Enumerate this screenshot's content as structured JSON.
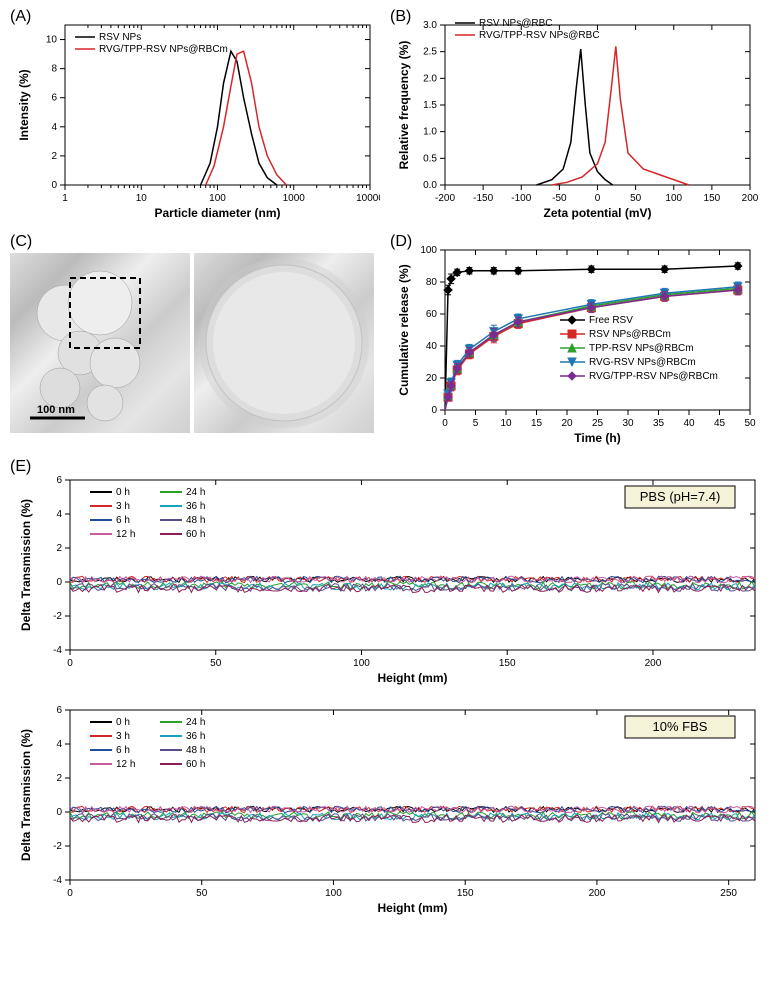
{
  "panelA": {
    "label": "(A)",
    "type": "line",
    "xlabel": "Particle diameter (nm)",
    "ylabel": "Intensity (%)",
    "xscale": "log",
    "xlim": [
      1,
      10000
    ],
    "xticks": [
      1,
      10,
      100,
      1000,
      10000
    ],
    "ylim": [
      0,
      11
    ],
    "yticks": [
      0,
      2,
      4,
      6,
      8,
      10
    ],
    "series": [
      {
        "name": "RSV NPs",
        "color": "#000000",
        "x": [
          60,
          80,
          100,
          120,
          150,
          180,
          220,
          280,
          350,
          450,
          600
        ],
        "y": [
          0,
          1.5,
          4,
          7,
          9.2,
          8.5,
          6,
          3.5,
          1.5,
          0.5,
          0
        ]
      },
      {
        "name": "RVG/TPP-RSV NPs@RBCm",
        "color": "#d62728",
        "x": [
          70,
          90,
          120,
          150,
          180,
          220,
          280,
          350,
          450,
          600,
          800
        ],
        "y": [
          0,
          1.3,
          4,
          6.8,
          9.0,
          9.2,
          7,
          4,
          2,
          0.7,
          0
        ]
      }
    ]
  },
  "panelB": {
    "label": "(B)",
    "type": "line",
    "xlabel": "Zeta potential (mV)",
    "ylabel": "Relative frequency (%)",
    "xlim": [
      -200,
      200
    ],
    "xticks": [
      -200,
      -150,
      -100,
      -50,
      0,
      50,
      100,
      150,
      200
    ],
    "ylim": [
      0,
      3.0
    ],
    "yticks": [
      0,
      0.5,
      1.0,
      1.5,
      2.0,
      2.5,
      3.0
    ],
    "series": [
      {
        "name": "RSV NPs@RBC",
        "color": "#000000",
        "x": [
          -80,
          -60,
          -45,
          -35,
          -28,
          -22,
          -16,
          -10,
          0,
          10,
          20
        ],
        "y": [
          0,
          0.1,
          0.3,
          0.8,
          1.8,
          2.55,
          1.5,
          0.6,
          0.25,
          0.1,
          0
        ]
      },
      {
        "name": "RVG/TPP-RSV NPs@RBC",
        "color": "#d62728",
        "x": [
          -60,
          -40,
          -20,
          0,
          10,
          18,
          24,
          30,
          40,
          60,
          90,
          120
        ],
        "y": [
          0,
          0.05,
          0.15,
          0.4,
          0.8,
          1.8,
          2.6,
          1.6,
          0.6,
          0.3,
          0.15,
          0
        ]
      }
    ]
  },
  "panelC": {
    "label": "(C)",
    "scalebar": "100 nm"
  },
  "panelD": {
    "label": "(D)",
    "type": "scatter-line-err",
    "xlabel": "Time (h)",
    "ylabel": "Cumulative release (%)",
    "xlim": [
      0,
      50
    ],
    "xticks": [
      0,
      5,
      10,
      15,
      20,
      25,
      30,
      35,
      40,
      45,
      50
    ],
    "ylim": [
      0,
      100
    ],
    "yticks": [
      0,
      20,
      40,
      60,
      80,
      100
    ],
    "series": [
      {
        "name": "Free RSV",
        "color": "#000000",
        "marker": "diamond",
        "x": [
          0.5,
          1,
          2,
          4,
          8,
          12,
          24,
          36,
          48
        ],
        "y": [
          75,
          82,
          86,
          87,
          87,
          87,
          88,
          88,
          90
        ],
        "err": [
          3,
          3,
          2,
          2,
          2,
          2,
          2,
          2,
          2
        ]
      },
      {
        "name": "RSV NPs@RBCm",
        "color": "#d62728",
        "marker": "square",
        "x": [
          0.5,
          1,
          2,
          4,
          8,
          12,
          24,
          36,
          48
        ],
        "y": [
          8,
          15,
          25,
          35,
          46,
          54,
          64,
          71,
          75
        ],
        "err": [
          2,
          3,
          3,
          3,
          4,
          3,
          3,
          3,
          3
        ]
      },
      {
        "name": "TPP-RSV NPs@RBCm",
        "color": "#2ca02c",
        "marker": "triangle",
        "x": [
          0.5,
          1,
          2,
          4,
          8,
          12,
          24,
          36,
          48
        ],
        "y": [
          9,
          16,
          26,
          36,
          47,
          55,
          65,
          72,
          76
        ],
        "err": [
          2,
          3,
          3,
          3,
          4,
          3,
          3,
          3,
          3
        ]
      },
      {
        "name": "RVG-RSV NPs@RBCm",
        "color": "#1f77b4",
        "marker": "invtriangle",
        "x": [
          0.5,
          1,
          2,
          4,
          8,
          12,
          24,
          36,
          48
        ],
        "y": [
          10,
          17,
          28,
          38,
          49,
          57,
          66,
          73,
          77
        ],
        "err": [
          2,
          3,
          3,
          3,
          4,
          3,
          3,
          3,
          3
        ]
      },
      {
        "name": "RVG/TPP-RSV NPs@RBCm",
        "color": "#7b2d8e",
        "marker": "diamond",
        "x": [
          0.5,
          1,
          2,
          4,
          8,
          12,
          24,
          36,
          48
        ],
        "y": [
          8,
          15,
          26,
          36,
          47,
          55,
          64,
          71,
          75
        ],
        "err": [
          2,
          3,
          3,
          3,
          4,
          3,
          3,
          3,
          3
        ]
      }
    ]
  },
  "panelE": {
    "label": "(E)",
    "xlabel": "Height (mm)",
    "ylabel": "Delta Transmission (%)",
    "ylim": [
      -4,
      6
    ],
    "yticks": [
      -4,
      -2,
      0,
      2,
      4,
      6
    ],
    "subplots": [
      {
        "condition": "PBS (pH=7.4)",
        "xlim": [
          0,
          235
        ],
        "xticks": [
          0,
          50,
          100,
          150,
          200
        ]
      },
      {
        "condition": "10% FBS",
        "xlim": [
          0,
          260
        ],
        "xticks": [
          0,
          50,
          100,
          150,
          200,
          250
        ]
      }
    ],
    "legend_times": [
      {
        "label": "0 h",
        "color": "#000000"
      },
      {
        "label": "3 h",
        "color": "#d62728"
      },
      {
        "label": "6 h",
        "color": "#1f4e9c"
      },
      {
        "label": "12 h",
        "color": "#c85a9e"
      },
      {
        "label": "24 h",
        "color": "#2ca02c"
      },
      {
        "label": "36 h",
        "color": "#17a2b8"
      },
      {
        "label": "48 h",
        "color": "#5b4b8a"
      },
      {
        "label": "60 h",
        "color": "#8c1d5a"
      }
    ],
    "noise_amplitude": 0.35
  }
}
